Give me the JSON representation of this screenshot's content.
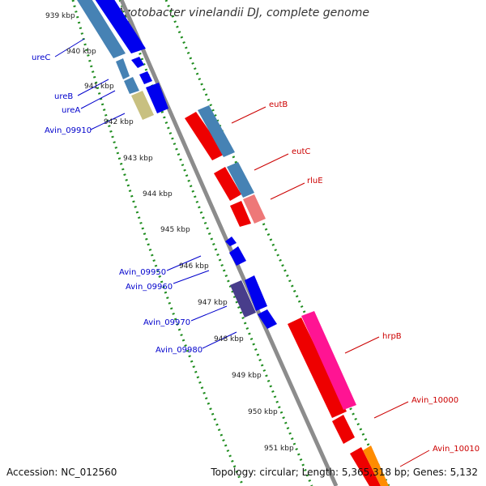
{
  "title": "Azotobacter vinelandii DJ, complete genome",
  "footer": {
    "accession": "Accession: NC_012560",
    "stats": "Topology: circular; Length: 5,365,318 bp; Genes: 5,132"
  },
  "ticks": [
    "939 kbp",
    "940 kbp",
    "941 kbp",
    "942 kbp",
    "943 kbp",
    "944 kbp",
    "945 kbp",
    "946 kbp",
    "947 kbp",
    "948 kbp",
    "949 kbp",
    "950 kbp",
    "951 kbp"
  ],
  "left_labels": [
    "ureC",
    "ureB",
    "ureA",
    "Avin_09910",
    "Avin_09950",
    "Avin_09960",
    "Avin_09970",
    "Avin_09980"
  ],
  "right_labels": [
    "eutB",
    "eutC",
    "rluE",
    "hrpB",
    "Avin_10000",
    "Avin_10010"
  ],
  "colors": {
    "blue": "#0000ee",
    "steel": "#4682b4",
    "olive": "#c8c080",
    "purple": "#483d8b",
    "red": "#ee0000",
    "pink": "#ee7878",
    "magenta": "#ff1493",
    "grid_dot": "#1e8c1e",
    "backbone": "#8c8c8c",
    "left_label": "#0000cc",
    "right_label": "#cc0000"
  }
}
